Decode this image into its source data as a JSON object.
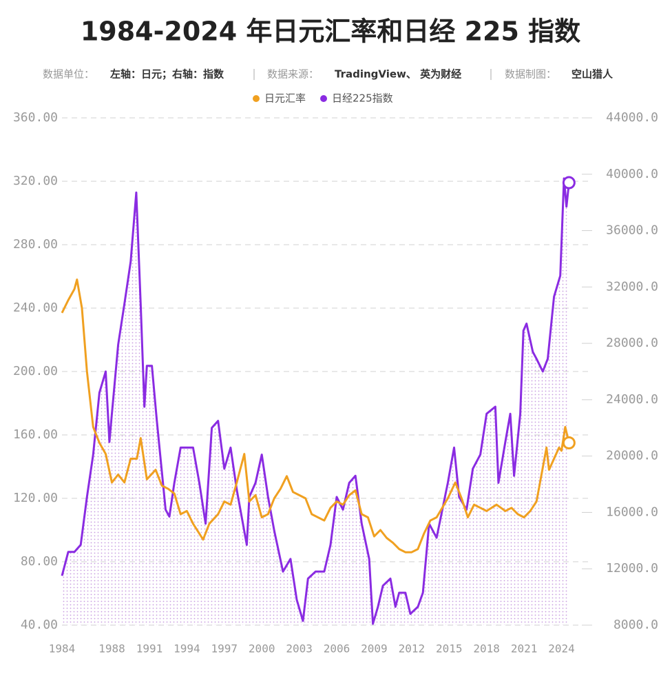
{
  "chart_data": {
    "type": "line",
    "title": "1984-2024 年日元汇率和日经 225 指数",
    "subtitle": {
      "unit_label": "数据单位：",
      "unit": "左轴：日元；右轴：指数",
      "source_label": "数据来源：",
      "source": "TradingView、 英为财经",
      "maker_label": "数据制图：",
      "maker": "空山猎人"
    },
    "xlim": [
      1984,
      2024.8
    ],
    "xticks": [
      1984,
      1988,
      1991,
      1994,
      1997,
      2000,
      2003,
      2006,
      2009,
      2012,
      2015,
      2018,
      2021,
      2024
    ],
    "ylim": [
      40,
      360
    ],
    "yticks": [
      {
        "value": 40,
        "label": "40.00"
      },
      {
        "value": 80,
        "label": "80.00"
      },
      {
        "value": 120,
        "label": "120.00"
      },
      {
        "value": 160,
        "label": "160.00"
      },
      {
        "value": 200,
        "label": "200.00"
      },
      {
        "value": 240,
        "label": "240.00"
      },
      {
        "value": 280,
        "label": "280.00"
      },
      {
        "value": 320,
        "label": "320.00"
      },
      {
        "value": 360,
        "label": "360.00"
      }
    ],
    "y2lim": [
      8000,
      44000
    ],
    "y2ticks": [
      {
        "value": 8000,
        "label": "8000.0"
      },
      {
        "value": 12000,
        "label": "12000.0"
      },
      {
        "value": 16000,
        "label": "16000.0"
      },
      {
        "value": 20000,
        "label": "20000.0"
      },
      {
        "value": 24000,
        "label": "24000.0"
      },
      {
        "value": 28000,
        "label": "28000.0"
      },
      {
        "value": 32000,
        "label": "32000.0"
      },
      {
        "value": 36000,
        "label": "36000.0"
      },
      {
        "value": 40000,
        "label": "40000.0"
      },
      {
        "value": 44000,
        "label": "44000.0"
      }
    ],
    "grid": true,
    "series": [
      {
        "name": "日元汇率",
        "color": "#f0a020",
        "axis": "y",
        "x": [
          1984.0,
          1984.5,
          1985.0,
          1985.2,
          1985.6,
          1986.0,
          1986.5,
          1987.0,
          1987.5,
          1988.0,
          1988.5,
          1989.0,
          1989.5,
          1990.0,
          1990.3,
          1990.8,
          1991.5,
          1992.0,
          1992.5,
          1993.0,
          1993.5,
          1994.0,
          1994.5,
          1995.3,
          1995.8,
          1996.5,
          1997.0,
          1997.5,
          1998.0,
          1998.6,
          1999.0,
          1999.5,
          2000.0,
          2000.5,
          2001.0,
          2001.5,
          2002.0,
          2002.5,
          2003.0,
          2003.5,
          2004.0,
          2005.0,
          2005.5,
          2006.0,
          2006.5,
          2007.0,
          2007.5,
          2008.0,
          2008.5,
          2009.0,
          2009.5,
          2010.0,
          2010.5,
          2011.0,
          2011.5,
          2012.0,
          2012.5,
          2013.0,
          2013.5,
          2014.0,
          2014.9,
          2015.5,
          2016.0,
          2016.5,
          2017.0,
          2018.0,
          2018.8,
          2019.5,
          2020.0,
          2020.5,
          2021.0,
          2021.5,
          2022.0,
          2022.8,
          2023.0,
          2023.8,
          2024.0,
          2024.3,
          2024.6
        ],
        "values": [
          237,
          245,
          252,
          258,
          240,
          200,
          165,
          155,
          148,
          130,
          135,
          130,
          145,
          145,
          158,
          132,
          138,
          128,
          126,
          123,
          110,
          112,
          104,
          94,
          104,
          110,
          118,
          116,
          130,
          148,
          118,
          122,
          108,
          110,
          120,
          126,
          134,
          124,
          122,
          120,
          110,
          106,
          114,
          118,
          116,
          122,
          125,
          110,
          108,
          96,
          100,
          95,
          92,
          88,
          86,
          86,
          88,
          98,
          106,
          108,
          120,
          130,
          120,
          108,
          116,
          112,
          116,
          112,
          114,
          110,
          108,
          112,
          118,
          152,
          138,
          152,
          150,
          165,
          155
        ]
      },
      {
        "name": "日经225指数",
        "color": "#8a2be2",
        "axis": "y2",
        "x": [
          1984.0,
          1984.5,
          1985.0,
          1985.5,
          1986.0,
          1986.5,
          1987.0,
          1987.5,
          1987.8,
          1988.0,
          1988.5,
          1989.0,
          1989.5,
          1989.95,
          1990.3,
          1990.6,
          1990.8,
          1991.2,
          1991.6,
          1992.3,
          1992.6,
          1993.0,
          1993.5,
          1994.0,
          1994.5,
          1995.0,
          1995.5,
          1996.0,
          1996.5,
          1997.0,
          1997.5,
          1998.0,
          1998.8,
          1999.0,
          1999.5,
          2000.0,
          2000.5,
          2001.0,
          2001.7,
          2002.3,
          2002.8,
          2003.3,
          2003.7,
          2004.3,
          2005.0,
          2005.5,
          2006.0,
          2006.5,
          2007.0,
          2007.5,
          2008.0,
          2008.6,
          2008.9,
          2009.3,
          2009.7,
          2010.3,
          2010.7,
          2011.0,
          2011.5,
          2011.9,
          2012.5,
          2012.9,
          2013.4,
          2014.0,
          2014.9,
          2015.4,
          2015.8,
          2016.4,
          2016.9,
          2017.5,
          2018.0,
          2018.7,
          2018.95,
          2019.5,
          2019.9,
          2020.2,
          2020.7,
          2020.95,
          2021.2,
          2021.7,
          2022.0,
          2022.5,
          2022.9,
          2023.4,
          2023.9,
          2024.2,
          2024.4,
          2024.6
        ],
        "values": [
          11500,
          13200,
          13200,
          13700,
          17100,
          20100,
          24500,
          26000,
          21000,
          23000,
          27900,
          30800,
          33800,
          38700,
          30800,
          23500,
          26400,
          26400,
          22500,
          16200,
          15700,
          18100,
          20600,
          20600,
          20600,
          18100,
          15200,
          22000,
          22500,
          19100,
          20600,
          17600,
          13700,
          17100,
          18100,
          20100,
          17100,
          14700,
          11800,
          12700,
          9800,
          8300,
          11300,
          11800,
          11800,
          13700,
          17100,
          16200,
          18100,
          18600,
          15200,
          12700,
          8100,
          9300,
          10800,
          11300,
          9300,
          10300,
          10300,
          8800,
          9300,
          10300,
          15200,
          14200,
          18100,
          20600,
          17100,
          16200,
          19100,
          20100,
          23000,
          23500,
          18100,
          21000,
          23000,
          18600,
          23000,
          28900,
          29400,
          27400,
          26900,
          26000,
          26900,
          31300,
          32800,
          39700,
          37700,
          39400
        ]
      }
    ]
  }
}
